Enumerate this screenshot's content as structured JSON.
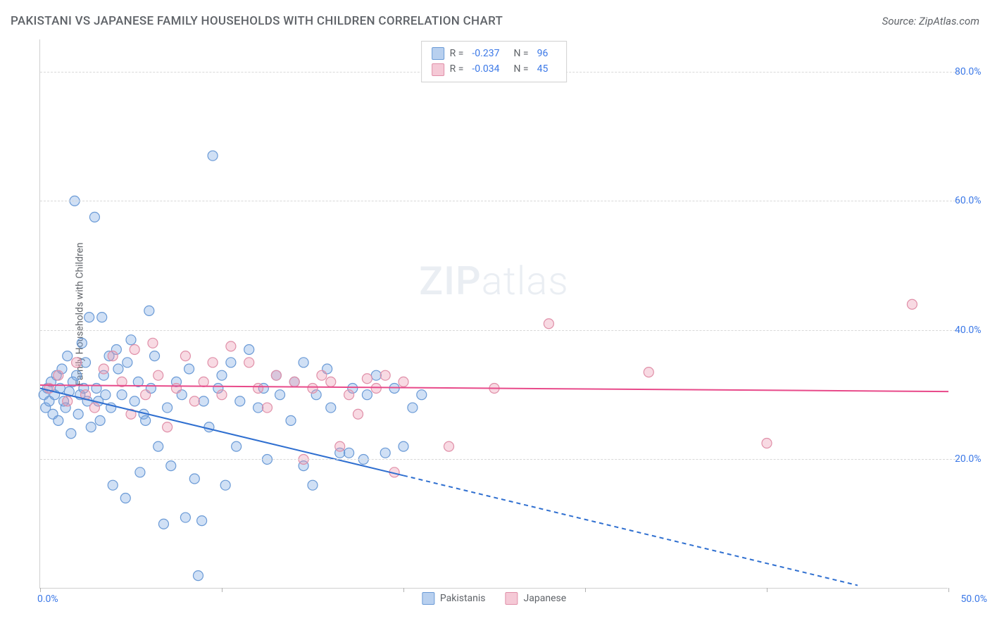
{
  "header": {
    "title": "PAKISTANI VS JAPANESE FAMILY HOUSEHOLDS WITH CHILDREN CORRELATION CHART",
    "source": "Source: ZipAtlas.com"
  },
  "watermark": {
    "zip": "ZIP",
    "atlas": "atlas"
  },
  "chart": {
    "type": "scatter",
    "ylabel": "Family Households with Children",
    "xlim": [
      0,
      50
    ],
    "ylim": [
      0,
      85
    ],
    "xtick_positions": [
      0,
      10,
      20,
      30,
      40,
      50
    ],
    "xtick_labels": [
      "0.0%",
      "",
      "",
      "",
      "",
      "50.0%"
    ],
    "ytick_positions": [
      20,
      40,
      60,
      80
    ],
    "ytick_labels": [
      "20.0%",
      "40.0%",
      "60.0%",
      "80.0%"
    ],
    "grid_color": "#d8d8d8",
    "background_color": "#ffffff",
    "axis_color": "#d0d0d0",
    "tick_color": "#3b78e7",
    "label_color": "#5f6368",
    "marker_radius": 7,
    "marker_stroke_width": 1.2,
    "line_width": 2,
    "series": [
      {
        "name": "Pakistanis",
        "fill": "rgba(120,165,225,0.35)",
        "stroke": "#6a9ad6",
        "swatch_fill": "#b8d0ef",
        "swatch_stroke": "#6a9ad6",
        "R": "-0.237",
        "N": "96",
        "trend": {
          "x1": 0,
          "y1": 31,
          "x2": 20,
          "y2": 17.5,
          "solid_end_x": 20,
          "dash_end_x": 45,
          "dash_end_y": 0.5,
          "color": "#2f6fd0"
        },
        "points": [
          [
            0.2,
            30
          ],
          [
            0.3,
            28
          ],
          [
            0.4,
            31
          ],
          [
            0.5,
            29
          ],
          [
            0.6,
            32
          ],
          [
            0.7,
            27
          ],
          [
            0.8,
            30
          ],
          [
            0.9,
            33
          ],
          [
            1.0,
            26
          ],
          [
            1.1,
            31
          ],
          [
            1.2,
            34
          ],
          [
            1.3,
            29
          ],
          [
            1.4,
            28
          ],
          [
            1.5,
            36
          ],
          [
            1.6,
            30.5
          ],
          [
            1.7,
            24
          ],
          [
            1.8,
            32
          ],
          [
            1.9,
            60
          ],
          [
            2.0,
            33
          ],
          [
            2.1,
            27
          ],
          [
            2.2,
            30
          ],
          [
            2.3,
            38
          ],
          [
            2.4,
            31
          ],
          [
            2.5,
            35
          ],
          [
            2.6,
            29
          ],
          [
            2.7,
            42
          ],
          [
            2.8,
            25
          ],
          [
            3.0,
            57.5
          ],
          [
            3.1,
            31
          ],
          [
            3.2,
            29
          ],
          [
            3.3,
            26
          ],
          [
            3.4,
            42
          ],
          [
            3.5,
            33
          ],
          [
            3.6,
            30
          ],
          [
            3.8,
            36
          ],
          [
            3.9,
            28
          ],
          [
            4.0,
            16
          ],
          [
            4.2,
            37
          ],
          [
            4.3,
            34
          ],
          [
            4.5,
            30
          ],
          [
            4.7,
            14
          ],
          [
            4.8,
            35
          ],
          [
            5.0,
            38.5
          ],
          [
            5.2,
            29
          ],
          [
            5.4,
            32
          ],
          [
            5.5,
            18
          ],
          [
            5.7,
            27
          ],
          [
            5.8,
            26
          ],
          [
            6.0,
            43
          ],
          [
            6.1,
            31
          ],
          [
            6.3,
            36
          ],
          [
            6.5,
            22
          ],
          [
            6.8,
            10
          ],
          [
            7.0,
            28
          ],
          [
            7.2,
            19
          ],
          [
            7.5,
            32
          ],
          [
            7.8,
            30
          ],
          [
            8.0,
            11
          ],
          [
            8.2,
            34
          ],
          [
            8.5,
            17
          ],
          [
            8.7,
            2
          ],
          [
            8.9,
            10.5
          ],
          [
            9.0,
            29
          ],
          [
            9.3,
            25
          ],
          [
            9.5,
            67
          ],
          [
            9.8,
            31
          ],
          [
            10.0,
            33
          ],
          [
            10.2,
            16
          ],
          [
            10.5,
            35
          ],
          [
            10.8,
            22
          ],
          [
            11.0,
            29
          ],
          [
            11.5,
            37
          ],
          [
            12.0,
            28
          ],
          [
            12.3,
            31
          ],
          [
            12.5,
            20
          ],
          [
            13.0,
            33
          ],
          [
            13.2,
            30
          ],
          [
            13.8,
            26
          ],
          [
            14.0,
            32
          ],
          [
            14.5,
            19
          ],
          [
            15.0,
            16
          ],
          [
            15.2,
            30
          ],
          [
            15.8,
            34
          ],
          [
            16.0,
            28
          ],
          [
            16.5,
            21
          ],
          [
            17.0,
            21
          ],
          [
            17.2,
            31
          ],
          [
            17.8,
            20
          ],
          [
            18.0,
            30
          ],
          [
            18.5,
            33
          ],
          [
            19.0,
            21
          ],
          [
            19.5,
            31
          ],
          [
            20.0,
            22
          ],
          [
            20.5,
            28
          ],
          [
            21.0,
            30
          ],
          [
            14.5,
            35
          ]
        ]
      },
      {
        "name": "Japanese",
        "fill": "rgba(235,150,175,0.35)",
        "stroke": "#e08fa8",
        "swatch_fill": "#f5c9d6",
        "swatch_stroke": "#e08fa8",
        "R": "-0.034",
        "N": "45",
        "trend": {
          "x1": 0,
          "y1": 31.5,
          "x2": 50,
          "y2": 30.5,
          "solid_end_x": 50,
          "color": "#e84a8a"
        },
        "points": [
          [
            0.5,
            31
          ],
          [
            1.0,
            33
          ],
          [
            1.5,
            29
          ],
          [
            2.0,
            35
          ],
          [
            2.5,
            30
          ],
          [
            3.0,
            28
          ],
          [
            3.5,
            34
          ],
          [
            4.0,
            36
          ],
          [
            4.5,
            32
          ],
          [
            5.0,
            27
          ],
          [
            5.2,
            37
          ],
          [
            5.8,
            30
          ],
          [
            6.2,
            38
          ],
          [
            6.5,
            33
          ],
          [
            7.0,
            25
          ],
          [
            7.5,
            31
          ],
          [
            8.0,
            36
          ],
          [
            8.5,
            29
          ],
          [
            9.0,
            32
          ],
          [
            9.5,
            35
          ],
          [
            10.0,
            30
          ],
          [
            10.5,
            37.5
          ],
          [
            11.5,
            35
          ],
          [
            12.0,
            31
          ],
          [
            12.5,
            28
          ],
          [
            13.0,
            33
          ],
          [
            14.0,
            32
          ],
          [
            14.5,
            20
          ],
          [
            15.0,
            31
          ],
          [
            15.5,
            33
          ],
          [
            16.0,
            32
          ],
          [
            16.5,
            22
          ],
          [
            17.0,
            30
          ],
          [
            17.5,
            27
          ],
          [
            18.0,
            32.5
          ],
          [
            18.5,
            31
          ],
          [
            19.0,
            33
          ],
          [
            19.5,
            18
          ],
          [
            20.0,
            32
          ],
          [
            22.5,
            22
          ],
          [
            25.0,
            31
          ],
          [
            28.0,
            41
          ],
          [
            33.5,
            33.5
          ],
          [
            40.0,
            22.5
          ],
          [
            48.0,
            44
          ]
        ]
      }
    ],
    "legend_bottom": [
      {
        "label": "Pakistanis",
        "fill": "#b8d0ef",
        "stroke": "#6a9ad6"
      },
      {
        "label": "Japanese",
        "fill": "#f5c9d6",
        "stroke": "#e08fa8"
      }
    ]
  }
}
